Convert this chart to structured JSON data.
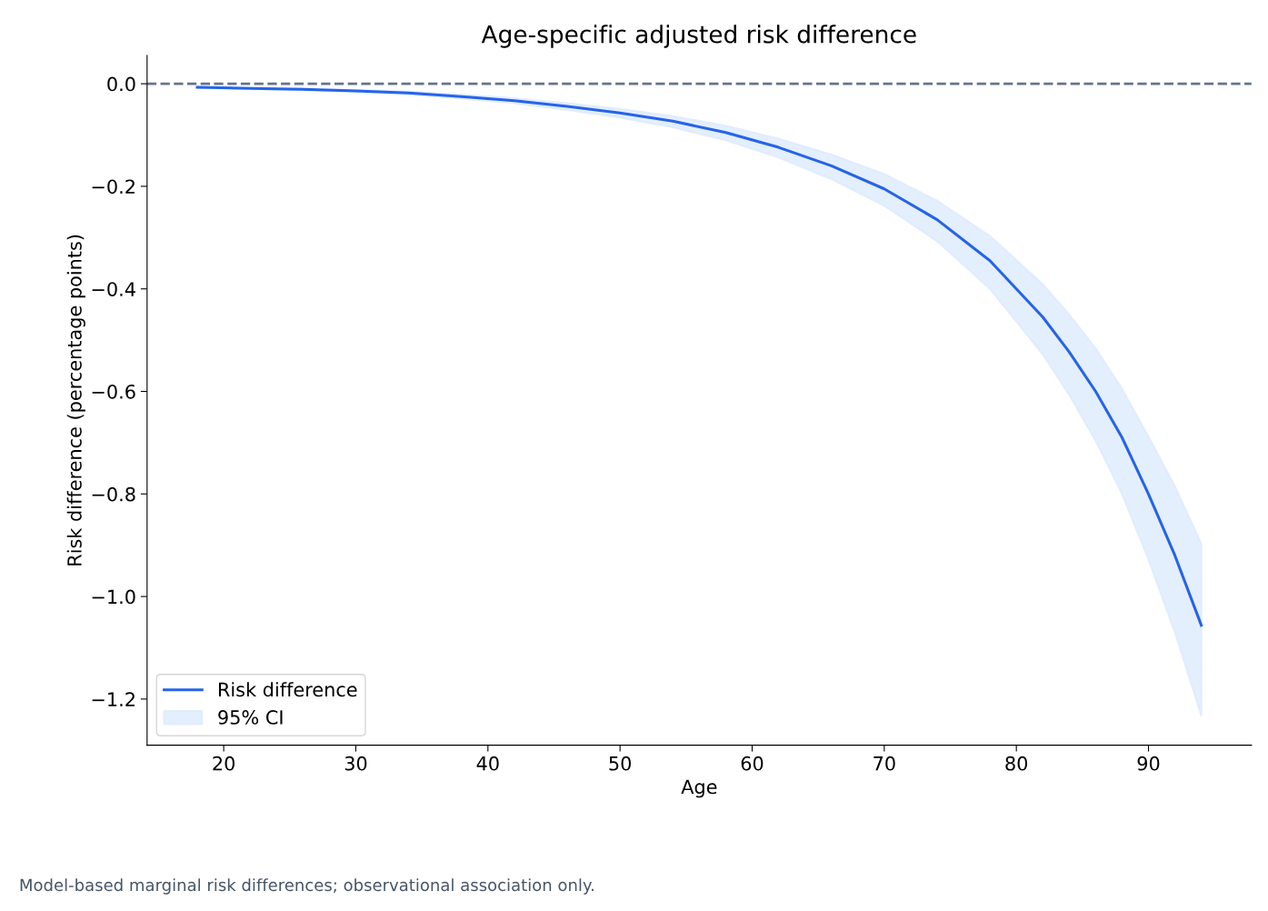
{
  "chart_data": {
    "type": "line",
    "title": "Age-specific adjusted risk difference",
    "xlabel": "Age",
    "ylabel": "Risk difference (percentage points)",
    "annotations": [
      "Model-based marginal risk differences; observational association only."
    ],
    "x": [
      18,
      22,
      26,
      30,
      34,
      38,
      42,
      46,
      50,
      54,
      58,
      62,
      66,
      70,
      74,
      78,
      82,
      84,
      86,
      88,
      90,
      92,
      94
    ],
    "series": [
      {
        "name": "Risk difference",
        "color": "#2563eb",
        "values": [
          -0.007,
          -0.009,
          -0.011,
          -0.014,
          -0.018,
          -0.025,
          -0.033,
          -0.044,
          -0.057,
          -0.073,
          -0.095,
          -0.124,
          -0.16,
          -0.205,
          -0.265,
          -0.345,
          -0.455,
          -0.523,
          -0.6,
          -0.69,
          -0.8,
          -0.92,
          -1.056
        ]
      },
      {
        "name": "95% CI",
        "type": "area",
        "color": "#dbeafe",
        "values": [
          null,
          null,
          null,
          null,
          null,
          null,
          null,
          null,
          null,
          null,
          null,
          null,
          null,
          null,
          null,
          null,
          null,
          null,
          null,
          null,
          null,
          null,
          null
        ],
        "upper": [
          -0.006,
          -0.008,
          -0.009,
          -0.012,
          -0.015,
          -0.021,
          -0.028,
          -0.038,
          -0.049,
          -0.063,
          -0.082,
          -0.107,
          -0.138,
          -0.176,
          -0.228,
          -0.297,
          -0.391,
          -0.45,
          -0.516,
          -0.595,
          -0.688,
          -0.785,
          -0.897
        ],
        "lower": [
          -0.008,
          -0.01,
          -0.013,
          -0.016,
          -0.021,
          -0.029,
          -0.038,
          -0.051,
          -0.066,
          -0.085,
          -0.11,
          -0.144,
          -0.186,
          -0.238,
          -0.307,
          -0.4,
          -0.528,
          -0.607,
          -0.696,
          -0.8,
          -0.928,
          -1.07,
          -1.232
        ]
      }
    ],
    "ref_lines": [
      {
        "axis": "y",
        "value": 0,
        "color": "#64748b",
        "line_style": "dashed"
      }
    ],
    "xlim": [
      14.2,
      97.8
    ],
    "ylim": [
      -1.29,
      0.055
    ],
    "xticks": [
      20,
      30,
      40,
      50,
      60,
      70,
      80,
      90
    ],
    "yticks": [
      {
        "value": 0,
        "label": "0.0"
      },
      {
        "value": -0.2,
        "label": "−0.2"
      },
      {
        "value": -0.4,
        "label": "−0.4"
      },
      {
        "value": -0.6,
        "label": "−0.6"
      },
      {
        "value": -0.8,
        "label": "−0.8"
      },
      {
        "value": -1.0,
        "label": "−1.0"
      },
      {
        "value": -1.2,
        "label": "−1.2"
      }
    ],
    "grid": false,
    "legend": "bottom left",
    "marker": "none",
    "line_style": "solid"
  }
}
